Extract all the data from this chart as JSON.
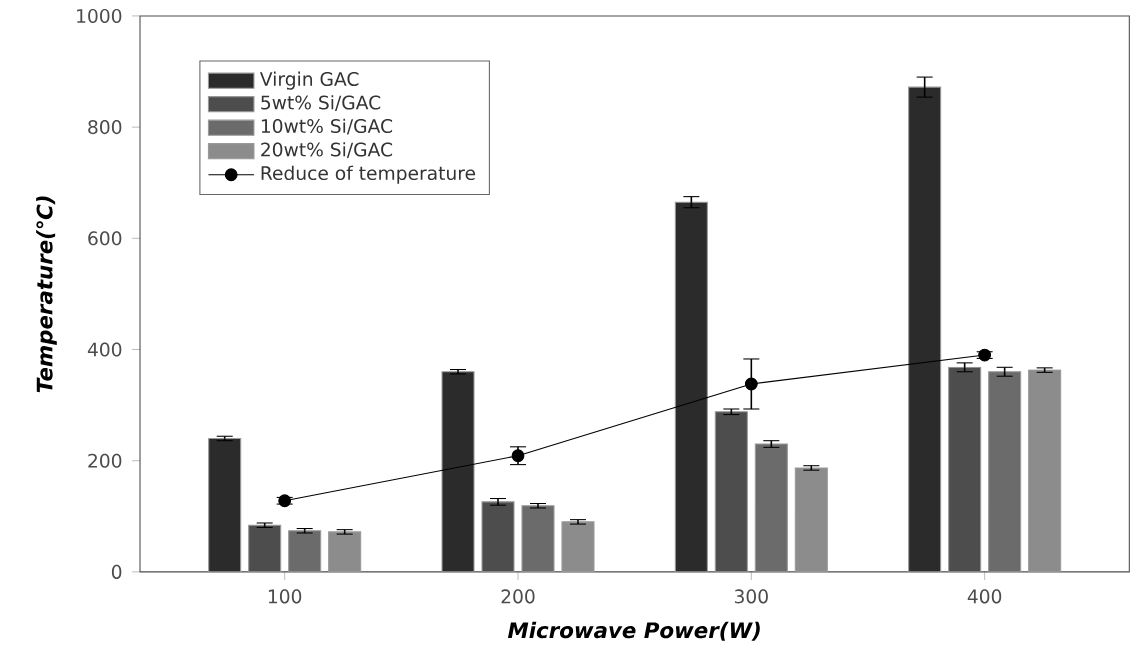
{
  "chart_data": {
    "type": "bar",
    "xlabel": "Microwave Power(W)",
    "ylabel": "Temperature(℃)",
    "categories": [
      "100",
      "200",
      "300",
      "400"
    ],
    "ylim": [
      0,
      1000
    ],
    "yticks": [
      0,
      200,
      400,
      600,
      800,
      1000
    ],
    "legend": "top left",
    "grid": false,
    "series": [
      {
        "name": "Virgin GAC",
        "color": "#2b2b2b",
        "values": [
          240,
          360,
          665,
          872
        ],
        "errors": [
          4,
          4,
          10,
          18
        ]
      },
      {
        "name": "5wt% Si/GAC",
        "color": "#4d4d4d",
        "values": [
          84,
          126,
          288,
          368
        ],
        "errors": [
          4,
          6,
          5,
          8
        ]
      },
      {
        "name": "10wt% Si/GAC",
        "color": "#6b6b6b",
        "values": [
          74,
          119,
          230,
          360
        ],
        "errors": [
          4,
          4,
          6,
          8
        ]
      },
      {
        "name": "20wt% Si/GAC",
        "color": "#8c8c8c",
        "values": [
          72,
          90,
          187,
          363
        ],
        "errors": [
          4,
          4,
          4,
          4
        ]
      },
      {
        "name": "Reduce of temperature",
        "type": "line",
        "color": "#000000",
        "marker": "circle",
        "values": [
          128,
          209,
          338,
          390
        ],
        "errors": [
          6,
          16,
          45,
          6
        ]
      }
    ]
  }
}
